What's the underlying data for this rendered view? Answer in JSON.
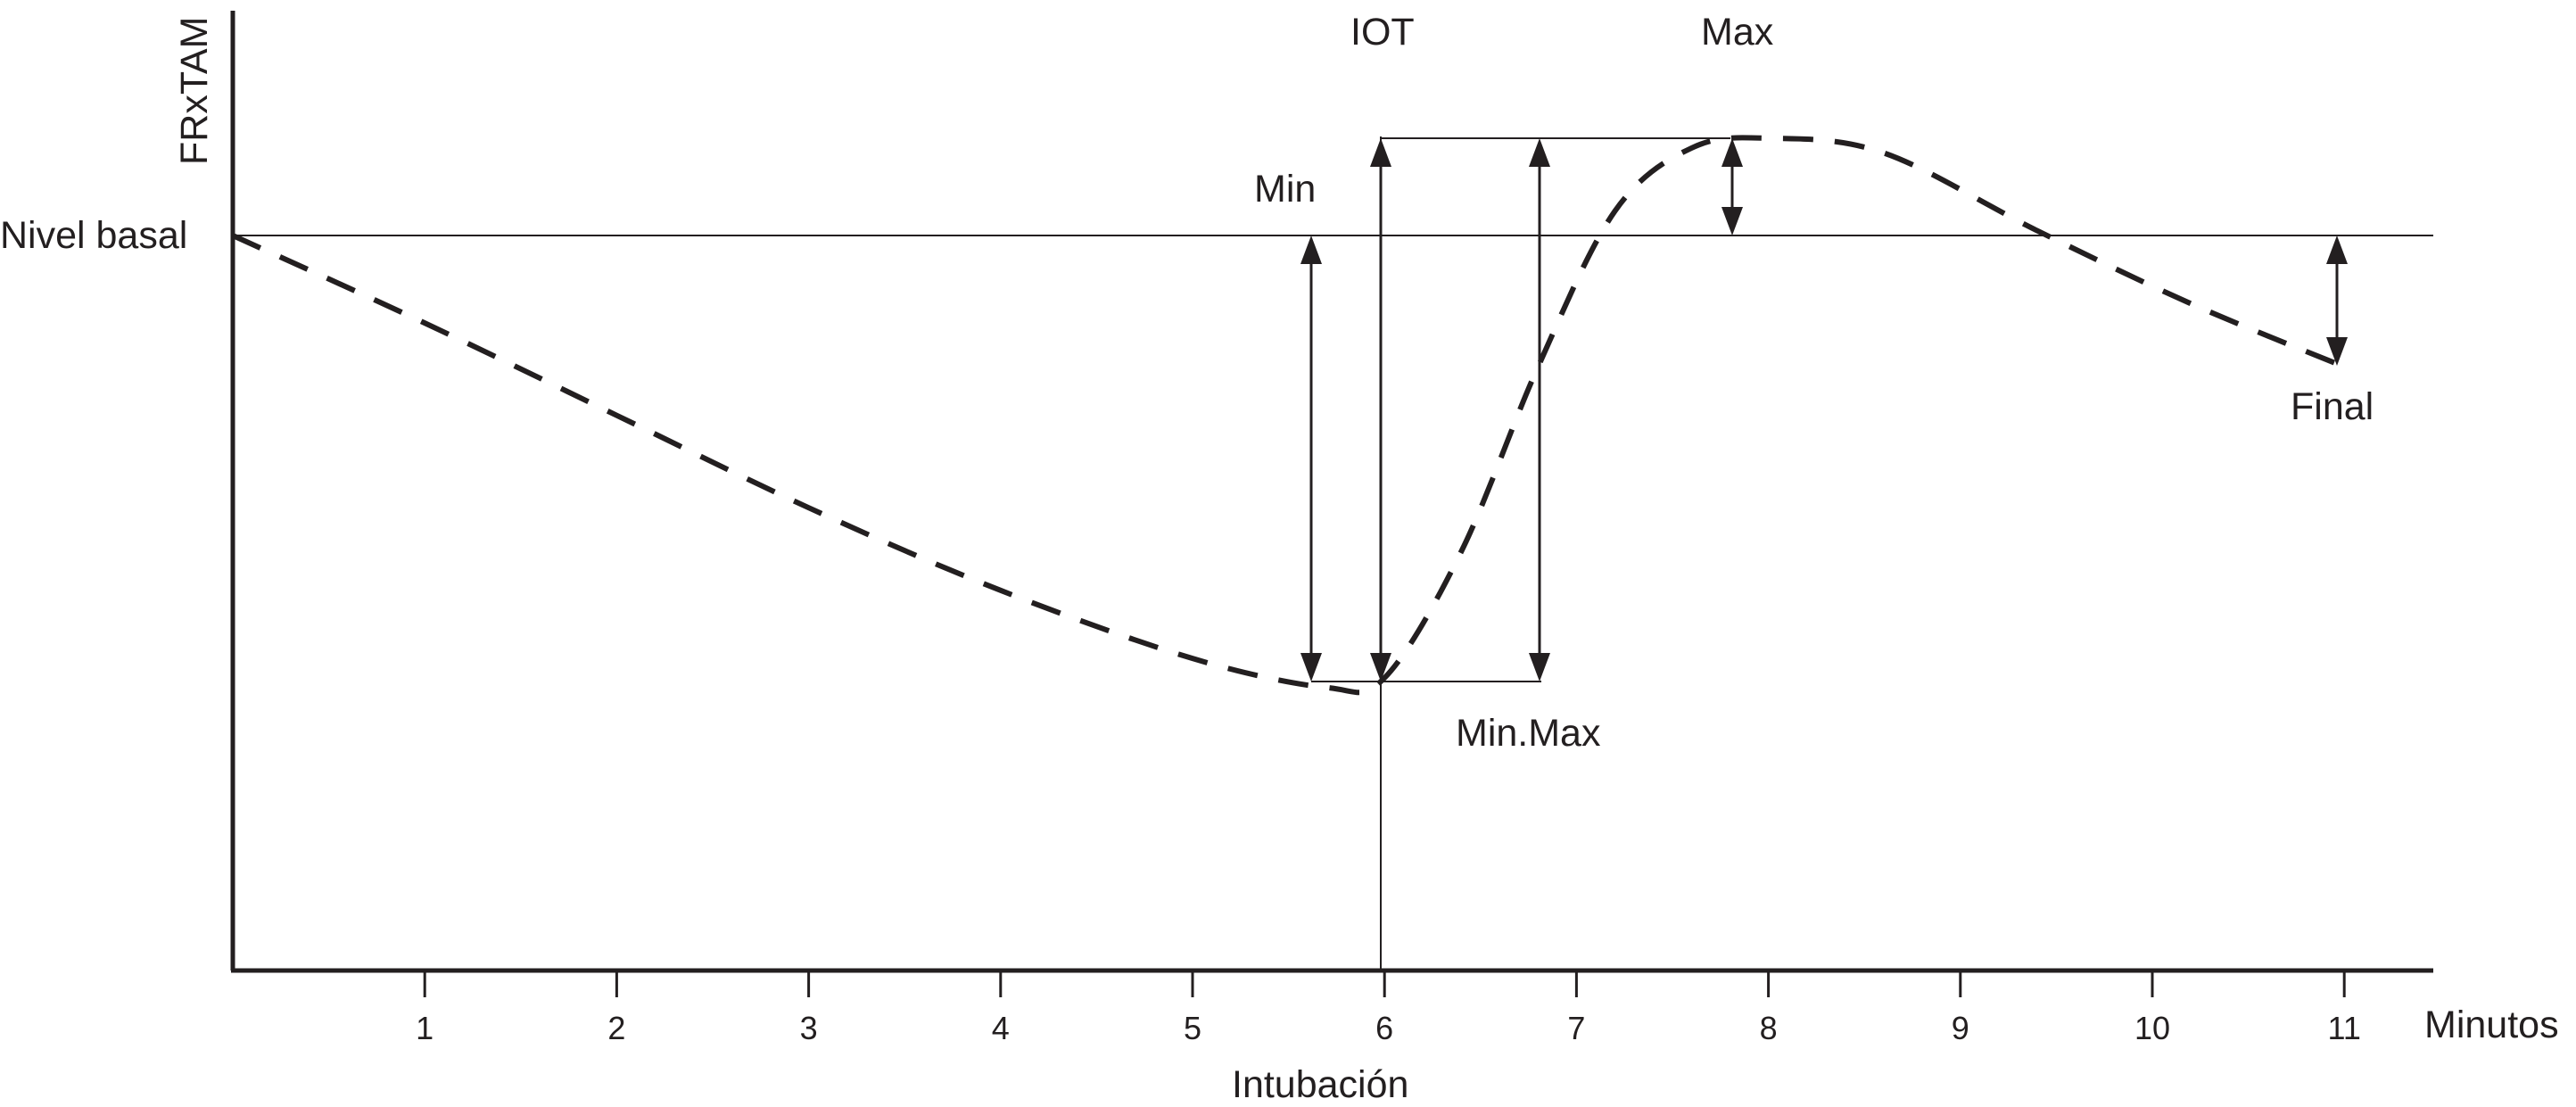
{
  "y_axis_label": "FRxTAM",
  "x_axis_label": "Minutos",
  "baseline_label": "Nivel basal",
  "x_ticks": [
    "1",
    "2",
    "3",
    "4",
    "5",
    "6",
    "7",
    "8",
    "9",
    "10",
    "11"
  ],
  "intubation": {
    "label": "Intubación",
    "minute": 6
  },
  "annotations": {
    "iot": "IOT",
    "max": "Max",
    "min": "Min",
    "min_max": "Min.Max",
    "final": "Final"
  },
  "curve_points_minutes": [
    {
      "t": 0.0,
      "level": 0.0
    },
    {
      "t": 1.0,
      "level": -0.18
    },
    {
      "t": 2.0,
      "level": -0.37
    },
    {
      "t": 3.0,
      "level": -0.56
    },
    {
      "t": 4.0,
      "level": -0.73
    },
    {
      "t": 5.0,
      "level": -0.87
    },
    {
      "t": 5.7,
      "level": -0.93
    },
    {
      "t": 6.0,
      "level": -0.91
    },
    {
      "t": 6.4,
      "level": -0.65
    },
    {
      "t": 6.8,
      "level": -0.27
    },
    {
      "t": 7.2,
      "level": 0.05
    },
    {
      "t": 7.6,
      "level": 0.18
    },
    {
      "t": 8.0,
      "level": 0.2
    },
    {
      "t": 8.6,
      "level": 0.17
    },
    {
      "t": 9.4,
      "level": 0.01
    },
    {
      "t": 10.2,
      "level": -0.14
    },
    {
      "t": 11.0,
      "level": -0.27
    }
  ]
}
